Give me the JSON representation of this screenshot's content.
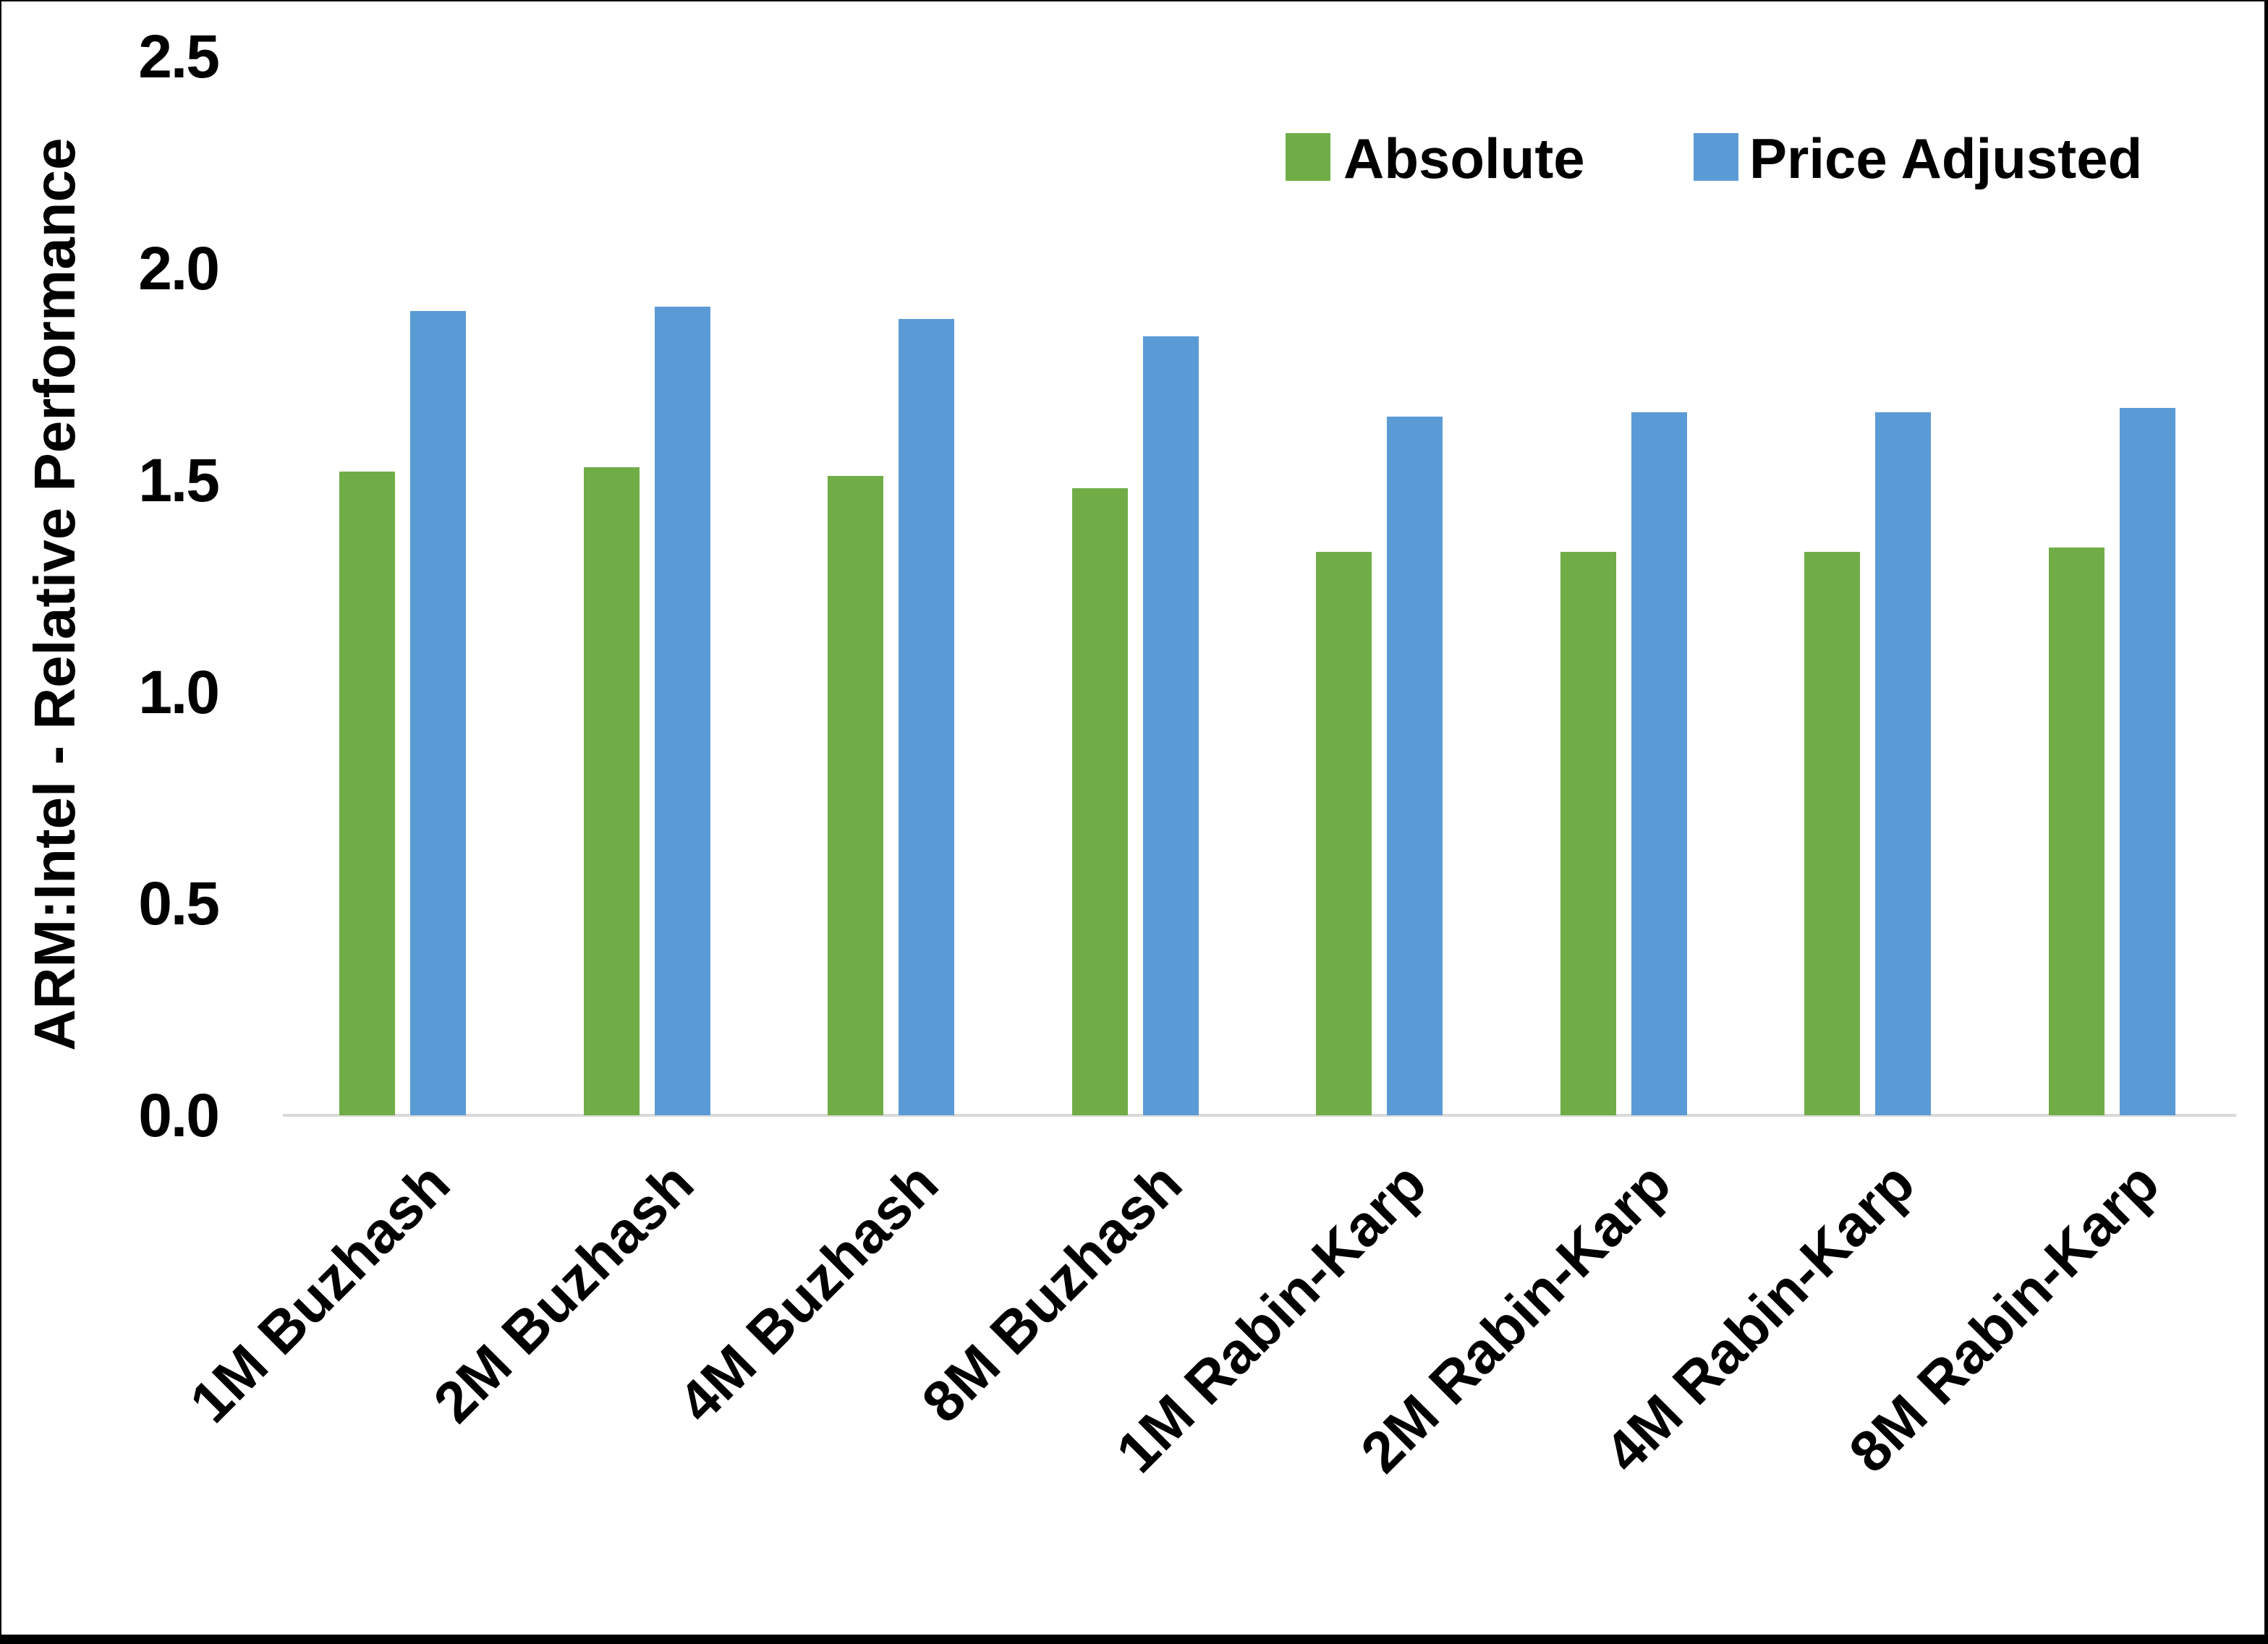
{
  "chart_data": {
    "type": "bar",
    "title": "",
    "ylabel": "ARM:Intel - Relative Performance",
    "xlabel": "",
    "ylim": [
      0,
      2.5
    ],
    "yticks": [
      "0.0",
      "0.5",
      "1.0",
      "1.5",
      "2.0",
      "2.5"
    ],
    "grid": false,
    "legend_position": "top-right",
    "categories": [
      "1M Buzhash",
      "2M Buzhash",
      "4M Buzhash",
      "8M Buzhash",
      "1M Rabin-Karp",
      "2M Rabin-Karp",
      "4M Rabin-Karp",
      "8M Rabin-Karp"
    ],
    "series": [
      {
        "name": "Absolute",
        "color": "#70AD47",
        "values": [
          1.52,
          1.53,
          1.51,
          1.48,
          1.33,
          1.33,
          1.33,
          1.34
        ]
      },
      {
        "name": "Price Adjusted",
        "color": "#5B9BD5",
        "values": [
          1.9,
          1.91,
          1.88,
          1.84,
          1.65,
          1.66,
          1.66,
          1.67
        ]
      }
    ],
    "colors": {
      "axis_line": "#D9D9D9",
      "text": "#000000",
      "frame": "#000000",
      "background": "#FFFFFF"
    }
  }
}
